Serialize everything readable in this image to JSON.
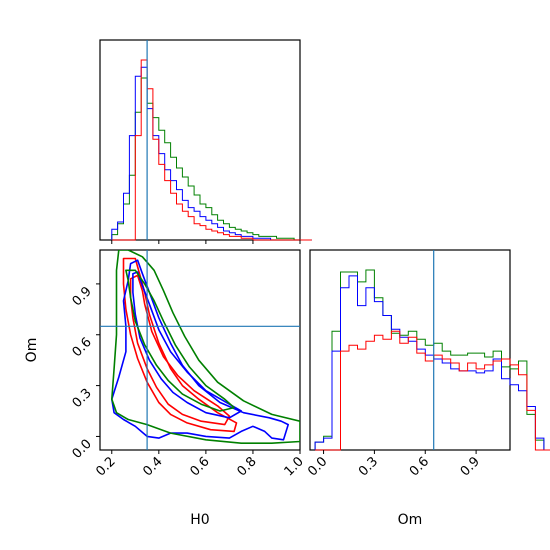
{
  "chart_data": {
    "type": "corner",
    "parameters": [
      "H0",
      "Om"
    ],
    "colors": {
      "red": "#ff0000",
      "blue": "#0000ff",
      "green": "#008000",
      "truth": "#1f77b4"
    },
    "truth": {
      "H0": 0.35,
      "Om": 0.65
    },
    "ranges": {
      "H0": [
        0.15,
        1.0
      ],
      "Om": [
        -0.08,
        1.1
      ]
    },
    "ticks": {
      "H0": [
        "0.2",
        "0.4",
        "0.6",
        "0.8",
        "1.0"
      ],
      "Om": [
        "0.0",
        "0.3",
        "0.6",
        "0.9"
      ]
    },
    "xlabels": {
      "H0": "H0",
      "Om": "Om"
    },
    "ylabel_om": "Om",
    "hist_H0": {
      "bin_start": 0.2,
      "bin_width": 0.025,
      "red": [
        0,
        0,
        0,
        0,
        58,
        100,
        84,
        56,
        42,
        33,
        26,
        20,
        16,
        13,
        9,
        8,
        6,
        5,
        4,
        3,
        2,
        2,
        1,
        1,
        0,
        0,
        0,
        0,
        0,
        0,
        0,
        0,
        0,
        0
      ],
      "blue": [
        6,
        10,
        26,
        58,
        91,
        96,
        73,
        58,
        48,
        39,
        33,
        28,
        22,
        18,
        16,
        13,
        11,
        9,
        7,
        5,
        4,
        3,
        2,
        2,
        1,
        1,
        1,
        0,
        0,
        0,
        0,
        0,
        0,
        0
      ],
      "green": [
        3,
        9,
        20,
        36,
        71,
        90,
        76,
        68,
        61,
        54,
        46,
        40,
        35,
        30,
        25,
        20,
        18,
        14,
        11,
        9,
        7,
        6,
        5,
        4,
        3,
        2,
        2,
        2,
        1,
        1,
        1,
        0,
        0,
        0
      ]
    },
    "hist_Om": {
      "bin_start": -0.05,
      "bin_width": 0.05,
      "red": [
        0,
        0,
        0,
        50,
        53,
        51,
        55,
        58,
        56,
        60,
        54,
        57,
        49,
        45,
        48,
        46,
        44,
        40,
        44,
        41,
        43,
        45,
        46,
        43,
        38,
        20,
        0,
        0
      ],
      "blue": [
        4,
        6,
        50,
        82,
        88,
        73,
        82,
        75,
        68,
        61,
        57,
        55,
        51,
        48,
        46,
        44,
        41,
        40,
        40,
        39,
        40,
        46,
        36,
        33,
        30,
        22,
        6,
        0
      ],
      "green": [
        4,
        7,
        60,
        90,
        90,
        85,
        91,
        77,
        68,
        59,
        58,
        60,
        56,
        53,
        54,
        50,
        48,
        48,
        49,
        49,
        47,
        50,
        42,
        41,
        45,
        18,
        5,
        0
      ]
    },
    "contours": [
      {
        "color": "red",
        "points": [
          [
            0.25,
            1.05
          ],
          [
            0.3,
            1.05
          ],
          [
            0.32,
            0.95
          ],
          [
            0.34,
            0.85
          ],
          [
            0.36,
            0.72
          ],
          [
            0.4,
            0.55
          ],
          [
            0.45,
            0.4
          ],
          [
            0.5,
            0.3
          ],
          [
            0.57,
            0.22
          ],
          [
            0.65,
            0.14
          ],
          [
            0.73,
            0.08
          ],
          [
            0.72,
            0.03
          ],
          [
            0.62,
            0.04
          ],
          [
            0.52,
            0.08
          ],
          [
            0.45,
            0.13
          ],
          [
            0.4,
            0.2
          ],
          [
            0.35,
            0.32
          ],
          [
            0.31,
            0.46
          ],
          [
            0.28,
            0.6
          ],
          [
            0.26,
            0.75
          ],
          [
            0.25,
            0.9
          ],
          [
            0.25,
            1.05
          ]
        ]
      },
      {
        "color": "red",
        "points": [
          [
            0.28,
            0.93
          ],
          [
            0.31,
            0.95
          ],
          [
            0.33,
            0.86
          ],
          [
            0.34,
            0.78
          ],
          [
            0.37,
            0.62
          ],
          [
            0.42,
            0.47
          ],
          [
            0.48,
            0.36
          ],
          [
            0.55,
            0.27
          ],
          [
            0.65,
            0.18
          ],
          [
            0.7,
            0.12
          ],
          [
            0.68,
            0.07
          ],
          [
            0.58,
            0.09
          ],
          [
            0.5,
            0.13
          ],
          [
            0.44,
            0.19
          ],
          [
            0.39,
            0.29
          ],
          [
            0.35,
            0.4
          ],
          [
            0.31,
            0.55
          ],
          [
            0.29,
            0.7
          ],
          [
            0.28,
            0.82
          ],
          [
            0.28,
            0.93
          ]
        ]
      },
      {
        "color": "blue",
        "points": [
          [
            0.28,
            1.02
          ],
          [
            0.31,
            1.04
          ],
          [
            0.33,
            0.96
          ],
          [
            0.36,
            0.85
          ],
          [
            0.4,
            0.7
          ],
          [
            0.45,
            0.55
          ],
          [
            0.5,
            0.42
          ],
          [
            0.57,
            0.3
          ],
          [
            0.66,
            0.2
          ],
          [
            0.76,
            0.14
          ],
          [
            0.87,
            0.11
          ],
          [
            0.92,
            0.09
          ],
          [
            0.95,
            0.07
          ],
          [
            0.93,
            -0.02
          ],
          [
            0.88,
            -0.01
          ],
          [
            0.85,
            0.03
          ],
          [
            0.8,
            0.06
          ],
          [
            0.75,
            0.03
          ],
          [
            0.7,
            -0.01
          ],
          [
            0.6,
            0.0
          ],
          [
            0.52,
            0.02
          ],
          [
            0.45,
            0.02
          ],
          [
            0.4,
            -0.01
          ],
          [
            0.35,
            0.0
          ],
          [
            0.3,
            0.06
          ],
          [
            0.25,
            0.1
          ],
          [
            0.21,
            0.14
          ],
          [
            0.2,
            0.22
          ],
          [
            0.23,
            0.35
          ],
          [
            0.26,
            0.5
          ],
          [
            0.26,
            0.65
          ],
          [
            0.25,
            0.8
          ],
          [
            0.27,
            0.92
          ],
          [
            0.28,
            1.02
          ]
        ]
      },
      {
        "color": "blue",
        "points": [
          [
            0.29,
            0.96
          ],
          [
            0.31,
            0.97
          ],
          [
            0.33,
            0.89
          ],
          [
            0.36,
            0.78
          ],
          [
            0.4,
            0.63
          ],
          [
            0.45,
            0.5
          ],
          [
            0.52,
            0.38
          ],
          [
            0.6,
            0.27
          ],
          [
            0.7,
            0.19
          ],
          [
            0.75,
            0.15
          ],
          [
            0.7,
            0.11
          ],
          [
            0.6,
            0.14
          ],
          [
            0.52,
            0.2
          ],
          [
            0.46,
            0.26
          ],
          [
            0.41,
            0.34
          ],
          [
            0.36,
            0.45
          ],
          [
            0.32,
            0.58
          ],
          [
            0.3,
            0.72
          ],
          [
            0.29,
            0.85
          ],
          [
            0.29,
            0.96
          ]
        ]
      },
      {
        "color": "green",
        "points": [
          [
            0.23,
            1.1
          ],
          [
            0.27,
            1.1
          ],
          [
            0.33,
            1.06
          ],
          [
            0.38,
            0.98
          ],
          [
            0.42,
            0.86
          ],
          [
            0.46,
            0.73
          ],
          [
            0.51,
            0.59
          ],
          [
            0.57,
            0.45
          ],
          [
            0.65,
            0.32
          ],
          [
            0.76,
            0.21
          ],
          [
            0.88,
            0.13
          ],
          [
            1.0,
            0.09
          ],
          [
            1.0,
            -0.03
          ],
          [
            0.88,
            -0.04
          ],
          [
            0.75,
            -0.04
          ],
          [
            0.6,
            -0.02
          ],
          [
            0.45,
            0.02
          ],
          [
            0.35,
            0.07
          ],
          [
            0.27,
            0.1
          ],
          [
            0.22,
            0.14
          ],
          [
            0.2,
            0.22
          ],
          [
            0.21,
            0.4
          ],
          [
            0.22,
            0.6
          ],
          [
            0.22,
            0.8
          ],
          [
            0.22,
            0.98
          ],
          [
            0.23,
            1.1
          ]
        ]
      },
      {
        "color": "green",
        "points": [
          [
            0.26,
            0.98
          ],
          [
            0.3,
            0.98
          ],
          [
            0.34,
            0.9
          ],
          [
            0.38,
            0.8
          ],
          [
            0.42,
            0.68
          ],
          [
            0.47,
            0.54
          ],
          [
            0.53,
            0.41
          ],
          [
            0.6,
            0.3
          ],
          [
            0.68,
            0.22
          ],
          [
            0.72,
            0.17
          ],
          [
            0.66,
            0.15
          ],
          [
            0.58,
            0.19
          ],
          [
            0.5,
            0.25
          ],
          [
            0.44,
            0.33
          ],
          [
            0.39,
            0.42
          ],
          [
            0.34,
            0.54
          ],
          [
            0.3,
            0.68
          ],
          [
            0.28,
            0.82
          ],
          [
            0.27,
            0.92
          ],
          [
            0.26,
            0.98
          ]
        ]
      }
    ]
  }
}
